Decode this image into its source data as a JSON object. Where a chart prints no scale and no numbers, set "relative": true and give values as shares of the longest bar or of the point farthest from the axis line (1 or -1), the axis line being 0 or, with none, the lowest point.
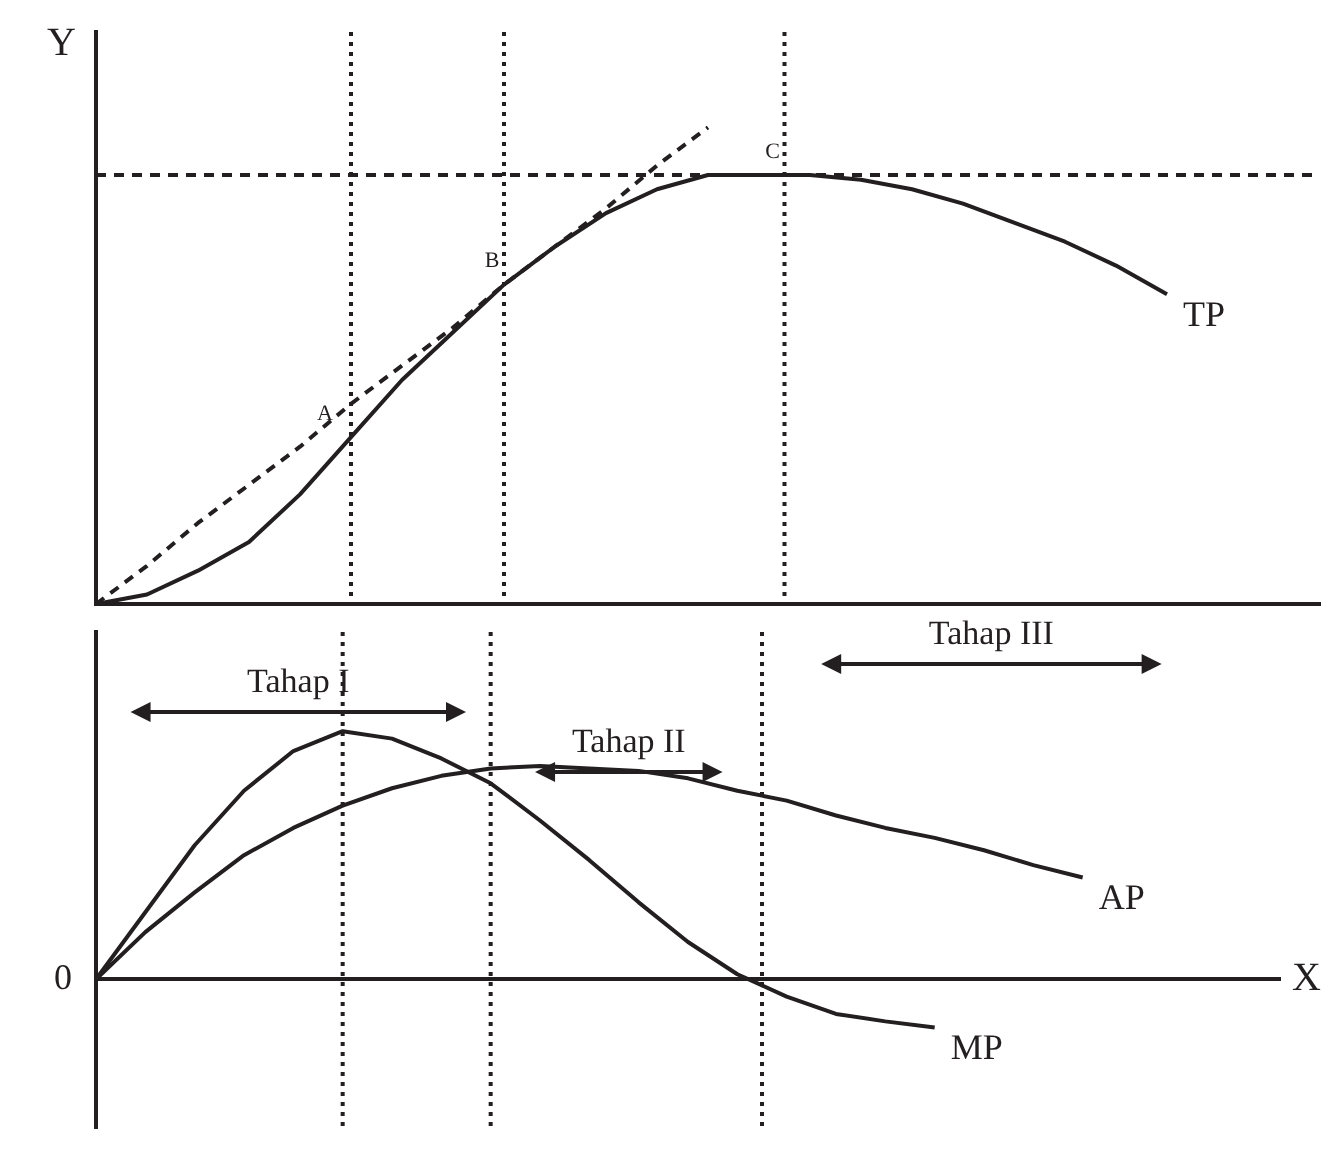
{
  "chart_data": [
    {
      "type": "line",
      "relative": true,
      "ylabel": "Y",
      "tick_labels": false,
      "grid": false,
      "legend": false,
      "marker": "none",
      "categories": [
        null,
        null,
        null,
        null,
        null,
        null,
        null,
        null,
        null,
        null,
        null,
        null,
        null,
        null,
        null,
        null,
        null,
        null,
        null,
        null,
        null,
        null,
        null,
        null,
        null
      ],
      "series": [
        {
          "name": "TP",
          "color": "#231f20",
          "values": [
            0,
            0.02,
            0.07,
            0.13,
            0.23,
            0.35,
            0.47,
            0.57,
            0.67,
            0.75,
            0.82,
            0.87,
            0.9,
            0.9,
            0.9,
            0.89,
            0.87,
            0.84,
            0.8,
            0.76,
            0.71,
            0.65,
            null,
            null,
            null
          ]
        },
        {
          "color": "#231f20",
          "line_style": "dashed",
          "values": [
            0,
            0.08,
            0.17,
            0.25,
            0.33,
            0.42,
            0.5,
            0.58,
            0.67,
            0.75,
            0.83,
            0.92,
            1,
            null,
            null,
            null,
            null,
            null,
            null,
            null,
            null,
            null,
            null,
            null,
            null
          ]
        }
      ],
      "ref_lines": [
        {
          "axis": "y",
          "value": 0.9,
          "line_style": "dashed"
        }
      ],
      "annotations": [
        "A",
        "B",
        "C"
      ]
    },
    {
      "type": "line",
      "relative": true,
      "xlabel": "X",
      "tick_labels": false,
      "grid": false,
      "legend": false,
      "marker": "none",
      "categories": [
        null,
        null,
        null,
        null,
        null,
        null,
        null,
        null,
        null,
        null,
        null,
        null,
        null,
        null,
        null,
        null,
        null,
        null,
        null,
        null,
        null,
        null,
        null,
        null,
        null
      ],
      "series": [
        {
          "name": "MP",
          "color": "#231f20",
          "values": [
            0,
            0.27,
            0.54,
            0.76,
            0.92,
            1,
            0.97,
            0.89,
            0.79,
            0.64,
            0.48,
            0.31,
            0.15,
            0.02,
            -0.07,
            -0.14,
            -0.17,
            -0.195,
            null,
            null,
            null,
            null,
            null,
            null,
            null
          ]
        },
        {
          "name": "AP",
          "color": "#231f20",
          "values": [
            0,
            0.19,
            0.35,
            0.5,
            0.61,
            0.7,
            0.77,
            0.82,
            0.85,
            0.86,
            0.85,
            0.84,
            0.81,
            0.76,
            0.72,
            0.66,
            0.61,
            0.57,
            0.52,
            0.46,
            0.41,
            null,
            null,
            null,
            null
          ]
        }
      ],
      "annotations": [
        "0",
        "Tahap I",
        "Tahap II",
        "Tahap III"
      ]
    }
  ]
}
